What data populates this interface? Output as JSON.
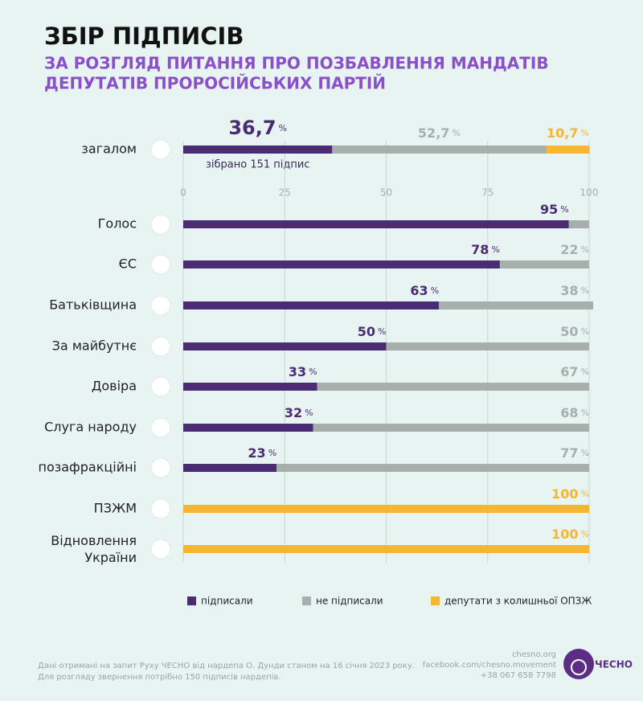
{
  "chart_data": {
    "type": "stacked-bar-horizontal",
    "title": "ЗБІР ПІДПИСІВ",
    "subtitle": [
      "ЗА РОЗГЛЯД ПИТАННЯ ПРО ПОЗБАВЛЕННЯ МАНДАТІВ",
      "ДЕПУТАТІВ ПРОРОСІЙСЬКИХ ПАРТІЙ"
    ],
    "annotation": "зібрано 151 підпис",
    "unit": "%",
    "categories": [
      "загалом",
      "Голос",
      "ЄС",
      "Батьківщина",
      "За майбутнє",
      "Довіра",
      "Слуга народу",
      "позафракційні",
      "ПЗЖМ",
      "Відновлення України"
    ],
    "series": [
      {
        "name": "підписали",
        "color": "#4b2b74",
        "values": [
          36.7,
          95,
          78,
          63,
          50,
          33,
          32,
          23,
          null,
          null
        ],
        "value_labels": [
          "36,7",
          "95",
          "78",
          "63",
          "50",
          "33",
          "32",
          "23",
          null,
          null
        ]
      },
      {
        "name": "не підписали",
        "color": "#a7afad",
        "values": [
          52.7,
          5,
          22,
          38,
          50,
          67,
          68,
          77,
          null,
          null
        ],
        "value_labels": [
          "52,7",
          null,
          "22",
          "38",
          "50",
          "67",
          "68",
          "77",
          null,
          null
        ]
      },
      {
        "name": "депутати з колишньої ОПЗЖ",
        "color": "#f6b631",
        "values": [
          10.7,
          null,
          null,
          null,
          null,
          null,
          null,
          null,
          100,
          100
        ],
        "value_labels": [
          "10,7",
          null,
          null,
          null,
          null,
          null,
          null,
          null,
          "100",
          "100"
        ]
      }
    ],
    "xlim": [
      0,
      100
    ],
    "xticks": [
      0,
      25,
      50,
      75,
      100
    ],
    "grid": true
  },
  "footer": {
    "source": [
      "Дані отримані на запит Руху ЧЕСНО від нардепа О. Дунди станом на 16 січня 2023 року.",
      "Для розгляду звернення потрібно 150 підписів нардепів."
    ],
    "contacts": [
      "chesno.org",
      "facebook.com/chesno.movement",
      "+38 067 658 7798"
    ],
    "logo": "ЧЕСНО"
  }
}
